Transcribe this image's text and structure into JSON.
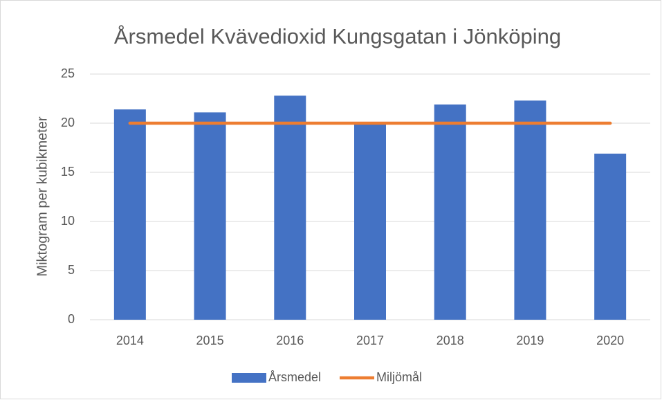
{
  "chart_data": {
    "type": "bar",
    "title": "Årsmedel Kvävedioxid Kungsgatan i Jönköping",
    "y_label": "Miktogram per kubikmeter",
    "categories": [
      "2014",
      "2015",
      "2016",
      "2017",
      "2018",
      "2019",
      "2020"
    ],
    "series": [
      {
        "name": "Årsmedel",
        "type": "bar",
        "color": "#4472c4",
        "values": [
          21.4,
          21.1,
          22.8,
          20.1,
          21.9,
          22.3,
          16.9
        ]
      },
      {
        "name": "Miljömål",
        "type": "line",
        "color": "#ed7d31",
        "values": [
          20,
          20,
          20,
          20,
          20,
          20,
          20
        ]
      }
    ],
    "ylim": [
      0,
      25
    ],
    "yticks": [
      0,
      5,
      10,
      15,
      20,
      25
    ],
    "grid": true,
    "legend": "bottom"
  }
}
